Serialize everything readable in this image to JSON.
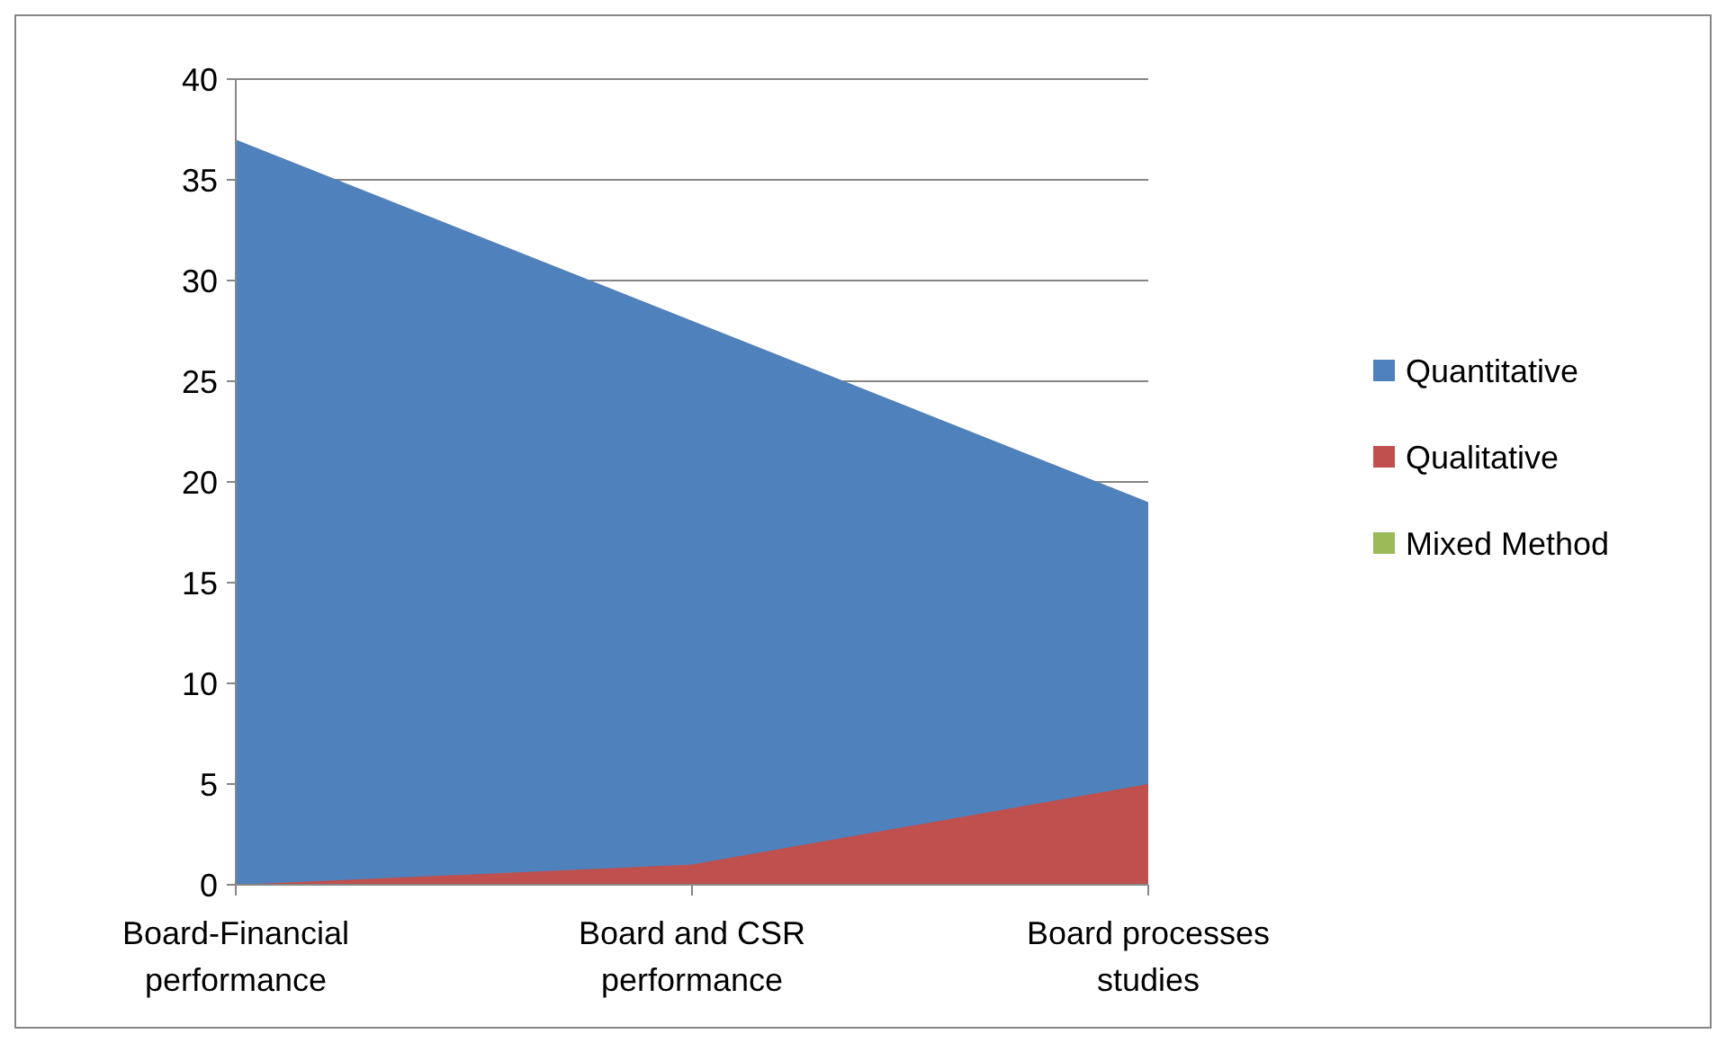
{
  "chart_data": {
    "type": "area",
    "categories": [
      "Board-Financial performance",
      "Board and CSR performance",
      "Board processes studies"
    ],
    "series": [
      {
        "name": "Quantitative",
        "color": "#4f81bd",
        "values": [
          37,
          28,
          19
        ]
      },
      {
        "name": "Qualitative",
        "color": "#c0504d",
        "values": [
          0,
          1,
          5
        ]
      },
      {
        "name": "Mixed Method",
        "color": "#9bbb59",
        "values": [
          null,
          null,
          null
        ]
      }
    ],
    "ylim": [
      0,
      40
    ],
    "yticks": [
      0,
      5,
      10,
      15,
      20,
      25,
      30,
      35,
      40
    ],
    "grid": "y",
    "legend": "right"
  }
}
